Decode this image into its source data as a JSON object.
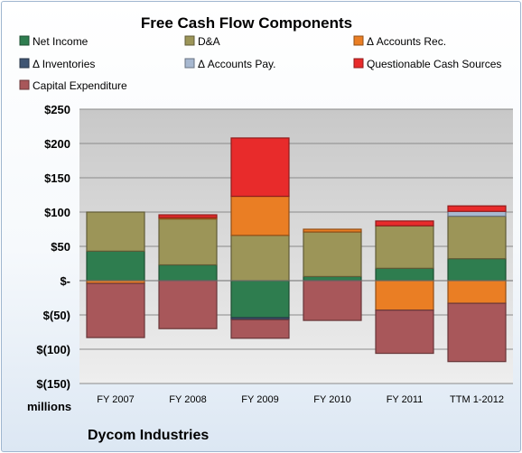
{
  "chart_data": {
    "type": "bar",
    "stacked": true,
    "title": "Free Cash Flow Components",
    "ylabel": "millions",
    "company": "Dycom Industries",
    "categories": [
      "FY 2007",
      "FY 2008",
      "FY 2009",
      "FY 2010",
      "FY 2011",
      "TTM 1-2012"
    ],
    "yticks": [
      "$250",
      "$200",
      "$150",
      "$100",
      "$50",
      "$-",
      "$(50)",
      "$(100)",
      "$(150)"
    ],
    "ylim": [
      -150,
      250
    ],
    "grid": true,
    "legend_position": "top",
    "series": [
      {
        "name": "Net Income",
        "color": "#2e7d4f",
        "values": [
          43,
          23,
          -54,
          6,
          18,
          32
        ]
      },
      {
        "name": "D&A",
        "color": "#9c9558",
        "values": [
          57,
          67,
          66,
          65,
          62,
          62
        ]
      },
      {
        "name": "Δ Accounts Rec.",
        "color": "#ea7e24",
        "values": [
          -4,
          2,
          57,
          4,
          -43,
          -33
        ]
      },
      {
        "name": "Δ Inventories",
        "color": "#3f5573",
        "values": [
          0,
          0,
          -3,
          0,
          0,
          0
        ]
      },
      {
        "name": "Δ Accounts Pay.",
        "color": "#a7b8d0",
        "values": [
          0,
          0,
          0,
          0,
          0,
          7
        ]
      },
      {
        "name": "Questionable Cash Sources",
        "color": "#e82b2b",
        "values": [
          0,
          4,
          85,
          0,
          7,
          8
        ]
      },
      {
        "name": "Capital Expenditure",
        "color": "#a8575a",
        "values": [
          -79,
          -70,
          -27,
          -58,
          -63,
          -85
        ]
      }
    ]
  }
}
